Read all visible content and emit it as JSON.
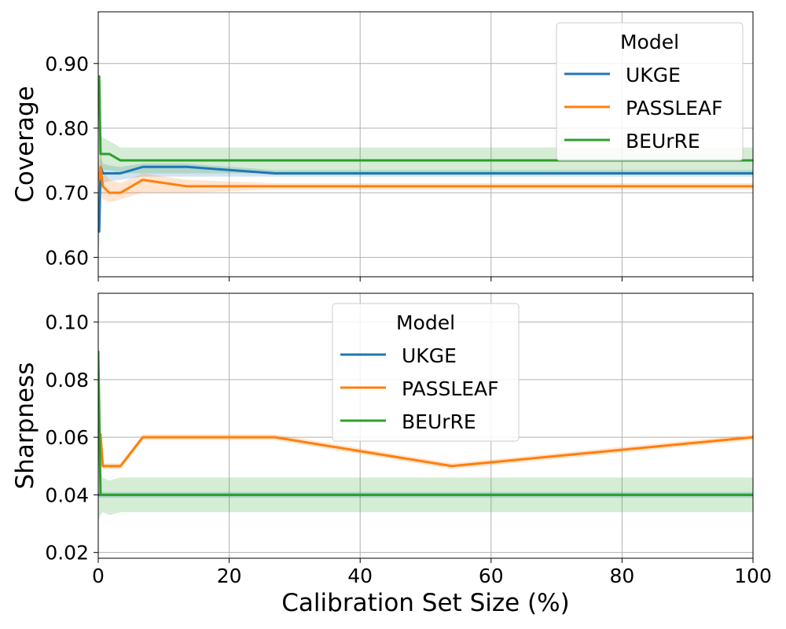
{
  "chart_data": [
    {
      "type": "line",
      "id": "coverage",
      "ylabel": "Coverage",
      "xlabel": "",
      "xlim": [
        0,
        100
      ],
      "ylim": [
        0.57,
        0.98
      ],
      "xticks": [
        0,
        20,
        40,
        60,
        80,
        100
      ],
      "yticks": [
        0.6,
        0.7,
        0.8,
        0.9
      ],
      "ytick_labels": [
        "0.60",
        "0.70",
        "0.80",
        "0.90"
      ],
      "grid": true,
      "legend": {
        "title": "Model",
        "placement": "top-right"
      },
      "series": [
        {
          "name": "UKGE",
          "color": "#1f77b4",
          "x": [
            0,
            0.15,
            0.35,
            0.7,
            1.7,
            3.4,
            6.8,
            13.5,
            27,
            54,
            100
          ],
          "y": [
            0.64,
            0.64,
            0.74,
            0.73,
            0.73,
            0.73,
            0.74,
            0.74,
            0.73,
            0.73,
            0.73
          ],
          "lower": [
            0.6,
            0.62,
            0.7,
            0.715,
            0.718,
            0.72,
            0.725,
            0.725,
            0.725,
            0.725,
            0.725
          ],
          "upper": [
            0.68,
            0.7,
            0.76,
            0.745,
            0.742,
            0.74,
            0.745,
            0.745,
            0.735,
            0.735,
            0.735
          ]
        },
        {
          "name": "PASSLEAF",
          "color": "#ff7f0e",
          "x": [
            0,
            0.15,
            0.35,
            0.7,
            1.7,
            3.4,
            6.8,
            13.5,
            27,
            54,
            100
          ],
          "y": [
            0.72,
            0.72,
            0.74,
            0.71,
            0.7,
            0.7,
            0.72,
            0.71,
            0.71,
            0.71,
            0.71
          ],
          "lower": [
            0.7,
            0.7,
            0.7,
            0.69,
            0.685,
            0.69,
            0.7,
            0.7,
            0.705,
            0.705,
            0.705
          ],
          "upper": [
            0.75,
            0.75,
            0.77,
            0.735,
            0.72,
            0.715,
            0.73,
            0.72,
            0.715,
            0.715,
            0.715
          ]
        },
        {
          "name": "BEUrRE",
          "color": "#2ca02c",
          "x": [
            0,
            0.15,
            0.35,
            0.7,
            1.7,
            3.4,
            6.8,
            13.5,
            27,
            54,
            100
          ],
          "y": [
            0.88,
            0.88,
            0.76,
            0.76,
            0.76,
            0.75,
            0.75,
            0.75,
            0.75,
            0.75,
            0.75
          ],
          "lower": [
            0.72,
            0.72,
            0.73,
            0.735,
            0.735,
            0.73,
            0.73,
            0.73,
            0.73,
            0.73,
            0.73
          ],
          "upper": [
            0.79,
            0.79,
            0.79,
            0.785,
            0.78,
            0.77,
            0.77,
            0.77,
            0.77,
            0.77,
            0.77
          ]
        }
      ]
    },
    {
      "type": "line",
      "id": "sharpness",
      "ylabel": "Sharpness",
      "xlabel": "Calibration Set Size (%)",
      "xlim": [
        0,
        100
      ],
      "ylim": [
        0.018,
        0.11
      ],
      "xticks": [
        0,
        20,
        40,
        60,
        80,
        100
      ],
      "xtick_labels": [
        "0",
        "20",
        "40",
        "60",
        "80",
        "100"
      ],
      "yticks": [
        0.02,
        0.04,
        0.06,
        0.08,
        0.1
      ],
      "ytick_labels": [
        "0.02",
        "0.04",
        "0.06",
        "0.08",
        "0.10"
      ],
      "grid": true,
      "legend": {
        "title": "Model",
        "placement": "top-center"
      },
      "series": [
        {
          "name": "UKGE",
          "color": "#1f77b4",
          "x": [
            0,
            0.35,
            0.7,
            1.7,
            3.4,
            6.8,
            13.5,
            27,
            54,
            100
          ],
          "y": [
            0.04,
            0.04,
            0.04,
            0.04,
            0.04,
            0.04,
            0.04,
            0.04,
            0.04,
            0.04
          ],
          "lower": [
            0.039,
            0.039,
            0.039,
            0.039,
            0.039,
            0.039,
            0.039,
            0.039,
            0.039,
            0.039
          ],
          "upper": [
            0.041,
            0.041,
            0.041,
            0.041,
            0.041,
            0.041,
            0.041,
            0.041,
            0.041,
            0.041
          ]
        },
        {
          "name": "PASSLEAF",
          "color": "#ff7f0e",
          "x": [
            0,
            0.35,
            0.7,
            1.7,
            3.4,
            6.8,
            13.5,
            27,
            54,
            100
          ],
          "y": [
            0.061,
            0.061,
            0.05,
            0.05,
            0.05,
            0.06,
            0.06,
            0.06,
            0.05,
            0.06
          ],
          "lower": [
            0.059,
            0.059,
            0.049,
            0.049,
            0.049,
            0.059,
            0.059,
            0.059,
            0.049,
            0.059
          ],
          "upper": [
            0.063,
            0.063,
            0.051,
            0.051,
            0.051,
            0.061,
            0.061,
            0.061,
            0.051,
            0.061
          ]
        },
        {
          "name": "BEUrRE",
          "color": "#2ca02c",
          "x": [
            0,
            0.35,
            0.7,
            1.7,
            3.4,
            6.8,
            13.5,
            27,
            54,
            100
          ],
          "y": [
            0.09,
            0.04,
            0.04,
            0.04,
            0.04,
            0.04,
            0.04,
            0.04,
            0.04,
            0.04
          ],
          "lower": [
            0.031,
            0.033,
            0.034,
            0.033,
            0.034,
            0.034,
            0.034,
            0.034,
            0.034,
            0.034
          ],
          "upper": [
            0.09,
            0.047,
            0.046,
            0.045,
            0.046,
            0.046,
            0.046,
            0.046,
            0.046,
            0.046
          ]
        }
      ]
    }
  ]
}
